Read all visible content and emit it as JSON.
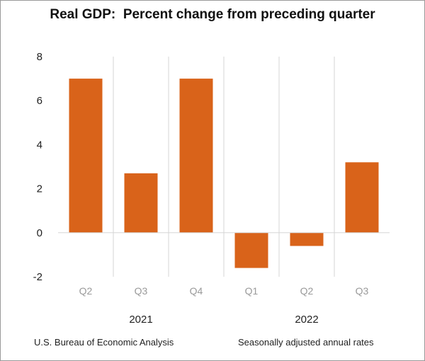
{
  "chart_data": {
    "type": "bar",
    "title": "Real GDP:  Percent change from preceding quarter",
    "categories": [
      "Q2",
      "Q3",
      "Q4",
      "Q1",
      "Q2",
      "Q3"
    ],
    "groups": [
      {
        "label": "2021",
        "categories": [
          "Q2",
          "Q3",
          "Q4"
        ]
      },
      {
        "label": "2022",
        "categories": [
          "Q1",
          "Q2",
          "Q3"
        ]
      }
    ],
    "values": [
      7.0,
      2.7,
      7.0,
      -1.6,
      -0.6,
      3.2
    ],
    "ylim": [
      -2,
      8
    ],
    "yticks": [
      "8",
      "6",
      "4",
      "2",
      "0",
      "-2"
    ],
    "ytick_values": [
      8,
      6,
      4,
      2,
      0,
      -2
    ],
    "xlabel": "",
    "ylabel": "",
    "bar_color": "#D9631A",
    "grid": false
  },
  "footer": {
    "source": "U.S. Bureau of Economic Analysis",
    "note": "Seasonally adjusted annual rates"
  }
}
